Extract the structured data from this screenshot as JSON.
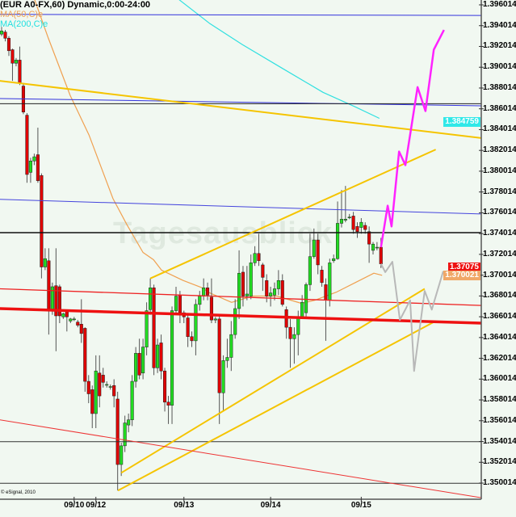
{
  "chart_data": {
    "type": "candlestick",
    "title": "(EUR A0-FX,60) Dynamic,0:00-24:00",
    "legend": [
      "MA(50,C)e",
      "MA(200,C)e"
    ],
    "watermark": "Tagesausblick",
    "copyright": "© eSignal, 2010",
    "ylim": [
      1.3494,
      1.3965
    ],
    "y_ticks": [
      "1.396014",
      "1.394014",
      "1.392014",
      "1.390014",
      "1.388014",
      "1.386014",
      "1.384014",
      "1.382014",
      "1.380014",
      "1.378014",
      "1.376014",
      "1.374014",
      "1.372014",
      "1.370014",
      "1.368014",
      "1.366014",
      "1.364014",
      "1.362014",
      "1.360014",
      "1.358014",
      "1.356014",
      "1.354014",
      "1.352014",
      "1.350014"
    ],
    "x_ticks": [
      {
        "label": "09/10",
        "bar": 20
      },
      {
        "label": "09/12",
        "bar": 26
      },
      {
        "label": "09/13",
        "bar": 50
      },
      {
        "label": "09/14",
        "bar": 72
      },
      {
        "label": "09/15",
        "bar": 95
      }
    ],
    "price_tags": [
      {
        "label": "1.384759",
        "value": 1.384759,
        "color": "#30e8e8"
      },
      {
        "label": "1.37075",
        "value": 1.37075,
        "color": "#ee1111"
      },
      {
        "label": "1.370021",
        "value": 1.370021,
        "color": "#f0a868"
      }
    ],
    "colors": {
      "up": "#22dd22",
      "down": "#e00000",
      "wick": "#555555",
      "background": "#f1f8f1"
    },
    "candles_ohlc": [
      [
        1.3932,
        1.3939,
        1.393,
        1.3935
      ],
      [
        1.3934,
        1.3936,
        1.3925,
        1.3928
      ],
      [
        1.3928,
        1.393,
        1.3911,
        1.3916
      ],
      [
        1.3917,
        1.3918,
        1.3887,
        1.3904
      ],
      [
        1.3904,
        1.3909,
        1.3901,
        1.3907
      ],
      [
        1.3907,
        1.392,
        1.3883,
        1.3885
      ],
      [
        1.3882,
        1.3885,
        1.3855,
        1.3857
      ],
      [
        1.3854,
        1.3856,
        1.3789,
        1.3797
      ],
      [
        1.3799,
        1.3813,
        1.3789,
        1.381
      ],
      [
        1.381,
        1.3817,
        1.3806,
        1.3814
      ],
      [
        1.3816,
        1.3842,
        1.3789,
        1.3791
      ],
      [
        1.3796,
        1.3798,
        1.3697,
        1.3708
      ],
      [
        1.3708,
        1.3726,
        1.3705,
        1.3716
      ],
      [
        1.3714,
        1.3726,
        1.3643,
        1.3667
      ],
      [
        1.3667,
        1.3693,
        1.3662,
        1.3689
      ],
      [
        1.369,
        1.3726,
        1.3627,
        1.3661
      ],
      [
        1.3689,
        1.3691,
        1.3654,
        1.3661
      ],
      [
        1.366,
        1.3664,
        1.3658,
        1.3663
      ],
      [
        1.3666,
        1.3667,
        1.3646,
        1.366
      ],
      [
        1.3656,
        1.3659,
        1.3654,
        1.3658
      ],
      [
        1.3658,
        1.366,
        1.3656,
        1.3658
      ],
      [
        1.3655,
        1.3657,
        1.365,
        1.3652
      ],
      [
        1.3653,
        1.3677,
        1.3635,
        1.3644
      ],
      [
        1.3649,
        1.365,
        1.3588,
        1.3598
      ],
      [
        1.3598,
        1.3604,
        1.3577,
        1.3586
      ],
      [
        1.359,
        1.3594,
        1.3553,
        1.3567
      ],
      [
        1.3567,
        1.3623,
        1.3553,
        1.3608
      ],
      [
        1.3606,
        1.3623,
        1.3573,
        1.3584
      ],
      [
        1.3604,
        1.3611,
        1.3592,
        1.3597
      ],
      [
        1.3595,
        1.3598,
        1.3592,
        1.3595
      ],
      [
        1.3593,
        1.3595,
        1.359,
        1.3593
      ],
      [
        1.3594,
        1.36,
        1.3573,
        1.3584
      ],
      [
        1.3581,
        1.3588,
        1.3493,
        1.3518
      ],
      [
        1.3518,
        1.3539,
        1.3507,
        1.3536
      ],
      [
        1.3536,
        1.3565,
        1.353,
        1.3558
      ],
      [
        1.3556,
        1.3567,
        1.3549,
        1.3561
      ],
      [
        1.3561,
        1.3604,
        1.3555,
        1.3598
      ],
      [
        1.3598,
        1.3631,
        1.3592,
        1.3625
      ],
      [
        1.3625,
        1.3639,
        1.36,
        1.3604
      ],
      [
        1.3606,
        1.3639,
        1.36,
        1.3631
      ],
      [
        1.3631,
        1.3674,
        1.3623,
        1.3666
      ],
      [
        1.3667,
        1.3697,
        1.3662,
        1.3688
      ],
      [
        1.3688,
        1.3691,
        1.3604,
        1.3611
      ],
      [
        1.3611,
        1.3639,
        1.3606,
        1.3633
      ],
      [
        1.3635,
        1.3643,
        1.36,
        1.3608
      ],
      [
        1.3608,
        1.3611,
        1.3569,
        1.3578
      ],
      [
        1.3578,
        1.3584,
        1.3557,
        1.3575
      ],
      [
        1.3575,
        1.367,
        1.3557,
        1.3666
      ],
      [
        1.3666,
        1.3689,
        1.3662,
        1.368
      ],
      [
        1.3681,
        1.3685,
        1.3654,
        1.3664
      ],
      [
        1.3664,
        1.3666,
        1.3654,
        1.366
      ],
      [
        1.3659,
        1.3662,
        1.3631,
        1.3641
      ],
      [
        1.3641,
        1.3646,
        1.3631,
        1.3637
      ],
      [
        1.3637,
        1.3677,
        1.3623,
        1.3672
      ],
      [
        1.3672,
        1.3685,
        1.3666,
        1.368
      ],
      [
        1.368,
        1.3697,
        1.3676,
        1.3688
      ],
      [
        1.3688,
        1.3693,
        1.3676,
        1.3681
      ],
      [
        1.3679,
        1.3697,
        1.3654,
        1.3657
      ],
      [
        1.3657,
        1.366,
        1.3654,
        1.3658
      ],
      [
        1.3658,
        1.3662,
        1.3557,
        1.3587
      ],
      [
        1.3587,
        1.3623,
        1.3569,
        1.3618
      ],
      [
        1.3618,
        1.3639,
        1.3611,
        1.3621
      ],
      [
        1.3621,
        1.3656,
        1.3608,
        1.3643
      ],
      [
        1.3643,
        1.3677,
        1.3639,
        1.3668
      ],
      [
        1.3668,
        1.3724,
        1.3658,
        1.3702
      ],
      [
        1.3703,
        1.3709,
        1.367,
        1.368
      ],
      [
        1.368,
        1.3709,
        1.3676,
        1.3682
      ],
      [
        1.368,
        1.372,
        1.3677,
        1.3712
      ],
      [
        1.3712,
        1.3728,
        1.3709,
        1.3721
      ],
      [
        1.3721,
        1.374,
        1.3709,
        1.3714
      ],
      [
        1.371,
        1.3712,
        1.3685,
        1.3698
      ],
      [
        1.3695,
        1.3701,
        1.3674,
        1.368
      ],
      [
        1.368,
        1.3689,
        1.367,
        1.3683
      ],
      [
        1.3681,
        1.3693,
        1.3676,
        1.3687
      ],
      [
        1.3687,
        1.3705,
        1.3681,
        1.3695
      ],
      [
        1.3695,
        1.3701,
        1.367,
        1.3672
      ],
      [
        1.3667,
        1.367,
        1.3639,
        1.365
      ],
      [
        1.365,
        1.3658,
        1.3611,
        1.3639
      ],
      [
        1.3639,
        1.365,
        1.3615,
        1.3643
      ],
      [
        1.3643,
        1.3666,
        1.3623,
        1.366
      ],
      [
        1.366,
        1.3681,
        1.3658,
        1.3674
      ],
      [
        1.3664,
        1.3693,
        1.3658,
        1.3691
      ],
      [
        1.3691,
        1.374,
        1.3685,
        1.3718
      ],
      [
        1.3718,
        1.3745,
        1.3716,
        1.3734
      ],
      [
        1.3734,
        1.374,
        1.3701,
        1.371
      ],
      [
        1.3705,
        1.3709,
        1.3689,
        1.3693
      ],
      [
        1.3691,
        1.3697,
        1.3637,
        1.3676
      ],
      [
        1.3676,
        1.3716,
        1.367,
        1.3712
      ],
      [
        1.3714,
        1.372,
        1.3712,
        1.3716
      ],
      [
        1.3716,
        1.3771,
        1.3715,
        1.375
      ],
      [
        1.375,
        1.3782,
        1.3746,
        1.3754
      ],
      [
        1.3753,
        1.3786,
        1.3751,
        1.3754
      ],
      [
        1.3756,
        1.3759,
        1.3754,
        1.3756
      ],
      [
        1.3757,
        1.3761,
        1.374,
        1.3744
      ],
      [
        1.3747,
        1.3751,
        1.3736,
        1.3742
      ],
      [
        1.3746,
        1.3755,
        1.374,
        1.3751
      ],
      [
        1.3748,
        1.3751,
        1.374,
        1.3744
      ],
      [
        1.3742,
        1.3747,
        1.3712,
        1.373
      ],
      [
        1.3724,
        1.3732,
        1.372,
        1.373
      ],
      [
        1.3727,
        1.3732,
        1.3724,
        1.3727
      ],
      [
        1.3727,
        1.3736,
        1.3707,
        1.3711
      ]
    ],
    "moving_averages": [
      {
        "name": "MA(50,C)e",
        "color": "#f0a050",
        "points": [
          [
            9.1,
            1.3965
          ],
          [
            12.9,
            1.3928
          ],
          [
            18.9,
            1.3873
          ],
          [
            24.1,
            1.3835
          ],
          [
            30.7,
            1.3774
          ],
          [
            34.5,
            1.3749
          ],
          [
            39.0,
            1.3722
          ],
          [
            41.9,
            1.3715
          ],
          [
            44.1,
            1.3705
          ],
          [
            49.8,
            1.3695
          ],
          [
            54.6,
            1.3688
          ],
          [
            56.6,
            1.3683
          ],
          [
            62.1,
            1.3674
          ],
          [
            67.5,
            1.368
          ],
          [
            73.6,
            1.368
          ],
          [
            79.8,
            1.3673
          ],
          [
            83.2,
            1.3676
          ],
          [
            88.8,
            1.3684
          ],
          [
            93.5,
            1.3693
          ],
          [
            98.2,
            1.3702
          ],
          [
            100.3,
            1.37
          ]
        ]
      },
      {
        "name": "MA(200,C)e",
        "color": "#30e0e0",
        "points": [
          [
            48.8,
            1.3965
          ],
          [
            56.6,
            1.3942
          ],
          [
            64.8,
            1.3922
          ],
          [
            75.0,
            1.3899
          ],
          [
            85.3,
            1.3876
          ],
          [
            93.5,
            1.3862
          ],
          [
            99.6,
            1.3851
          ]
        ]
      }
    ],
    "drawings": [
      {
        "kind": "horizontal",
        "color": "#3333dd",
        "width": 1,
        "points": [
          [
            -0.5,
            1.3951
          ],
          [
            125.5,
            1.395
          ]
        ]
      },
      {
        "kind": "horizontal",
        "color": "#3333dd",
        "width": 1,
        "points": [
          [
            -0.5,
            1.387
          ],
          [
            125.5,
            1.3863
          ]
        ]
      },
      {
        "kind": "horizontal",
        "color": "#222222",
        "width": 1,
        "points": [
          [
            -0.5,
            1.3865
          ],
          [
            125.5,
            1.3865
          ]
        ]
      },
      {
        "kind": "trend",
        "color": "#4444dd",
        "width": 1,
        "points": [
          [
            -0.5,
            1.3773
          ],
          [
            125.5,
            1.3759
          ]
        ]
      },
      {
        "kind": "horizontal",
        "color": "#111111",
        "width": 1.5,
        "points": [
          [
            -0.5,
            1.3741
          ],
          [
            125.5,
            1.3741
          ]
        ]
      },
      {
        "kind": "horizontal",
        "color": "#333333",
        "width": 1,
        "points": [
          [
            -0.5,
            1.354
          ],
          [
            125.5,
            1.354
          ]
        ]
      },
      {
        "kind": "horizontal",
        "color": "#333333",
        "width": 1,
        "points": [
          [
            -0.5,
            1.35
          ],
          [
            125.5,
            1.35
          ]
        ]
      },
      {
        "kind": "trend",
        "color": "#f5c400",
        "width": 2,
        "points": [
          [
            -0.5,
            1.3887
          ],
          [
            125.5,
            1.3832
          ]
        ]
      },
      {
        "kind": "trend",
        "color": "#f5c400",
        "width": 2,
        "points": [
          [
            41.0,
            1.3697
          ],
          [
            113.9,
            1.3821
          ]
        ]
      },
      {
        "kind": "trend",
        "color": "#f5c400",
        "width": 2,
        "points": [
          [
            32.1,
            1.3493
          ],
          [
            113.9,
            1.3656
          ]
        ]
      },
      {
        "kind": "trend",
        "color": "#f5c400",
        "width": 2,
        "points": [
          [
            33.0,
            1.351
          ],
          [
            111.1,
            1.3687
          ]
        ]
      },
      {
        "kind": "trend",
        "color": "#ee1111",
        "width": 3.5,
        "points": [
          [
            -0.5,
            1.3668
          ],
          [
            125.5,
            1.3654
          ]
        ]
      },
      {
        "kind": "trend",
        "color": "#ee2222",
        "width": 1.3,
        "points": [
          [
            -0.5,
            1.3687
          ],
          [
            125.5,
            1.3671
          ]
        ]
      },
      {
        "kind": "trend",
        "color": "#ee3333",
        "width": 1,
        "points": [
          [
            -0.5,
            1.3561
          ],
          [
            125.5,
            1.3486
          ]
        ]
      },
      {
        "kind": "projection",
        "color": "#ff22ff",
        "width": 2.5,
        "points": [
          [
            100.0,
            1.3727
          ],
          [
            101.7,
            1.3767
          ],
          [
            102.7,
            1.3747
          ],
          [
            104.6,
            1.3819
          ],
          [
            106.2,
            1.3806
          ],
          [
            109.3,
            1.3881
          ],
          [
            111.3,
            1.3858
          ],
          [
            113.4,
            1.3917
          ],
          [
            116.0,
            1.3936
          ]
        ]
      },
      {
        "kind": "projection",
        "color": "#b8b8b8",
        "width": 2,
        "points": [
          [
            100.0,
            1.3711
          ],
          [
            101.1,
            1.3703
          ],
          [
            102.9,
            1.3713
          ],
          [
            104.8,
            1.3657
          ],
          [
            107.4,
            1.3676
          ],
          [
            108.4,
            1.3608
          ],
          [
            111.1,
            1.3685
          ],
          [
            112.9,
            1.3667
          ],
          [
            115.8,
            1.3704
          ]
        ]
      }
    ]
  }
}
